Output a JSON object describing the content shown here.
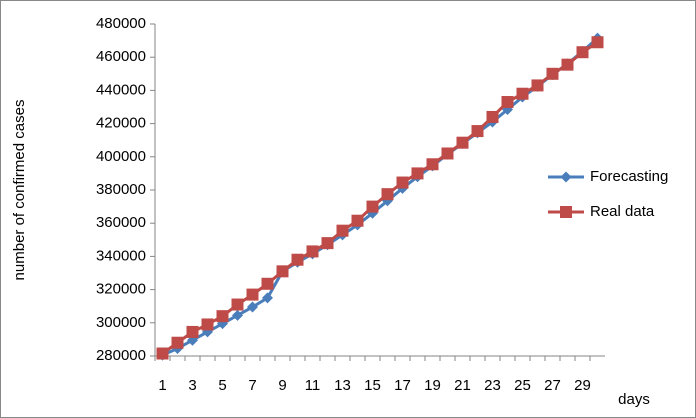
{
  "chart_data": {
    "type": "line",
    "y_label": "number of confirmed cases",
    "x_label": "days",
    "categories": [
      1,
      null,
      3,
      null,
      5,
      null,
      7,
      null,
      9,
      null,
      11,
      null,
      13,
      null,
      15,
      null,
      17,
      null,
      19,
      null,
      21,
      null,
      23,
      null,
      25,
      null,
      27,
      null,
      29,
      null
    ],
    "series": [
      {
        "name": "Forecasting",
        "color": "#4a7ebb",
        "marker": "diamond",
        "values": [
          280500,
          284500,
          289500,
          294500,
          299500,
          304500,
          309500,
          315000,
          331000,
          336500,
          341500,
          347000,
          353000,
          359000,
          366000,
          373500,
          381000,
          388000,
          394500,
          401500,
          408000,
          414500,
          421000,
          428500,
          436000,
          442500,
          449500,
          456000,
          463500,
          471500
        ]
      },
      {
        "name": "Real data",
        "color": "#be4b48",
        "marker": "square",
        "values": [
          281500,
          288000,
          294500,
          299000,
          304000,
          311000,
          317000,
          323500,
          331000,
          338000,
          343000,
          348000,
          355500,
          361500,
          370000,
          377500,
          384500,
          390000,
          395500,
          402000,
          408500,
          415500,
          424000,
          433000,
          438000,
          443000,
          450000,
          455500,
          463000,
          469000
        ]
      }
    ],
    "ylim": [
      280000,
      480000
    ],
    "yticks": [
      280000,
      300000,
      320000,
      340000,
      360000,
      380000,
      400000,
      420000,
      440000,
      460000,
      480000
    ],
    "grid": false,
    "legend": "right"
  }
}
